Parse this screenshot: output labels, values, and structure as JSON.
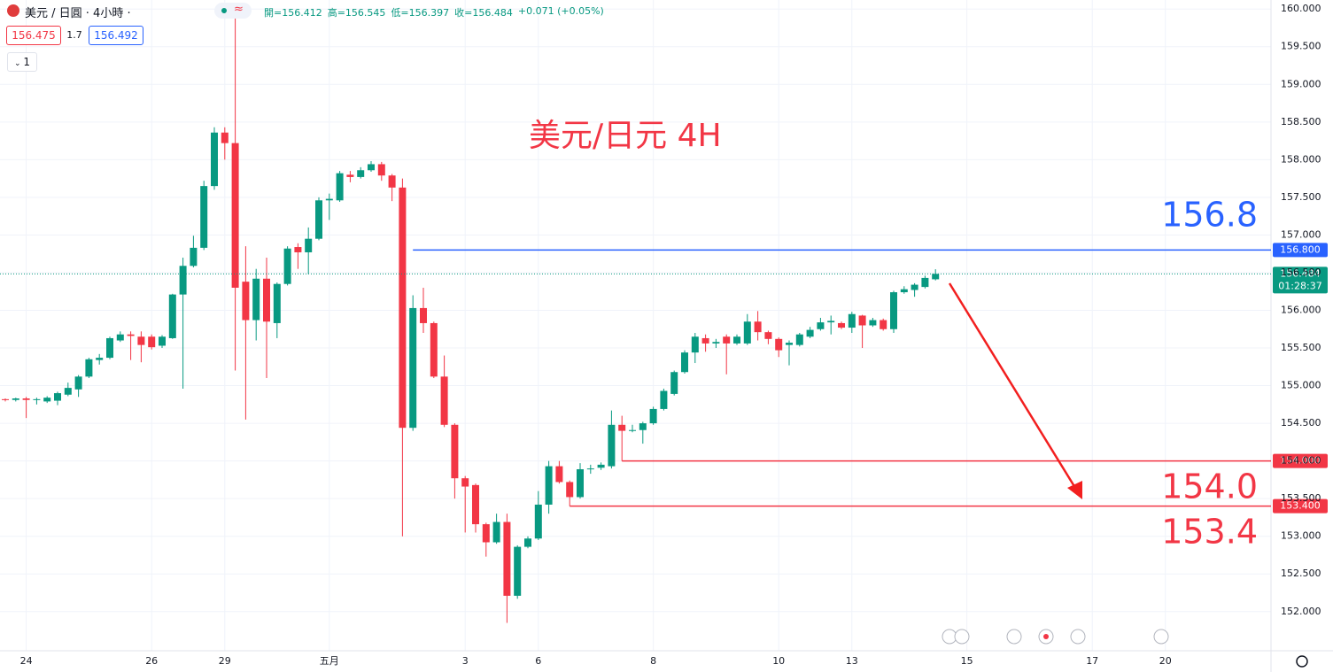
{
  "header": {
    "symbol": "美元 / 日圓 · 4小時 ·",
    "ohlc": [
      "開=156.412",
      "高=156.545",
      "低=156.397",
      "收=156.484",
      "+0.071 (+0.05%)"
    ],
    "bid": "156.475",
    "spread": "1.7",
    "ask": "156.492",
    "indicator_count": "1"
  },
  "chart_data": {
    "type": "candlestick",
    "title": "美元/日元 4H",
    "categories": [
      null,
      null,
      "24",
      null,
      null,
      null,
      null,
      null,
      null,
      null,
      null,
      null,
      null,
      null,
      "26",
      null,
      null,
      null,
      null,
      null,
      null,
      "29",
      null,
      null,
      null,
      null,
      null,
      null,
      null,
      null,
      null,
      "五月",
      null,
      null,
      null,
      null,
      null,
      null,
      null,
      null,
      null,
      null,
      null,
      null,
      "3",
      null,
      null,
      null,
      null,
      null,
      null,
      "6",
      null,
      null,
      null,
      null,
      null,
      null,
      null,
      null,
      null,
      null,
      "8",
      null,
      null,
      null,
      null,
      null,
      null,
      null,
      null,
      null,
      null,
      null,
      "10",
      null,
      null,
      null,
      null,
      null,
      null,
      "13",
      null,
      null,
      null,
      null,
      null,
      null,
      null,
      null,
      null,
      null,
      "15",
      null,
      null,
      null,
      null,
      null,
      null,
      null,
      null,
      null,
      null,
      null,
      "17",
      null,
      null,
      null,
      null,
      null,
      null,
      "20"
    ],
    "open": [
      154.82,
      154.81,
      154.83,
      154.81,
      154.79,
      154.8,
      154.88,
      154.95,
      155.12,
      155.34,
      155.37,
      155.6,
      155.68,
      155.65,
      155.65,
      155.53,
      155.63,
      156.21,
      156.59,
      156.83,
      157.65,
      158.36,
      158.22,
      156.38,
      155.87,
      156.42,
      155.83,
      156.35,
      156.84,
      156.77,
      156.95,
      157.46,
      157.46,
      157.8,
      157.77,
      157.86,
      157.94,
      157.79,
      157.63,
      154.44,
      156.03,
      155.83,
      155.12,
      154.48,
      153.77,
      153.68,
      153.16,
      152.92,
      153.19,
      152.21,
      152.86,
      152.97,
      153.42,
      153.93,
      153.72,
      153.52,
      153.89,
      153.91,
      153.93,
      154.48,
      154.4,
      154.41,
      154.5,
      154.69,
      154.89,
      155.18,
      155.44,
      155.63,
      155.56,
      155.65,
      155.56,
      155.56,
      155.85,
      155.71,
      155.62,
      155.54,
      155.54,
      155.65,
      155.75,
      155.84,
      155.83,
      155.77,
      155.93,
      155.8,
      155.87,
      155.75,
      156.24,
      156.27,
      156.31,
      156.412,
      null,
      null,
      null,
      null,
      null,
      null,
      null,
      null,
      null,
      null,
      null,
      null,
      null,
      null,
      null,
      null,
      null,
      null,
      null,
      null,
      null,
      null
    ],
    "high": [
      154.83,
      154.84,
      154.85,
      154.84,
      154.86,
      154.92,
      155.04,
      155.14,
      155.37,
      155.42,
      155.65,
      155.72,
      155.72,
      155.72,
      155.68,
      155.67,
      156.22,
      156.7,
      156.99,
      157.72,
      158.43,
      158.43,
      159.9,
      156.85,
      156.55,
      156.7,
      156.37,
      156.85,
      156.89,
      157.1,
      157.5,
      157.55,
      157.85,
      157.85,
      157.9,
      157.98,
      157.97,
      157.81,
      157.75,
      156.2,
      156.3,
      155.85,
      155.4,
      154.5,
      153.8,
      153.7,
      153.18,
      153.3,
      153.3,
      152.88,
      153.0,
      153.6,
      154.0,
      154.0,
      153.74,
      153.97,
      153.95,
      153.98,
      154.67,
      154.6,
      154.48,
      154.52,
      154.72,
      154.96,
      155.2,
      155.47,
      155.7,
      155.68,
      155.62,
      155.68,
      155.68,
      155.95,
      155.99,
      155.73,
      155.64,
      155.6,
      155.7,
      155.78,
      155.9,
      155.93,
      155.85,
      155.98,
      155.94,
      155.9,
      155.89,
      156.26,
      156.32,
      156.36,
      156.46,
      156.545,
      null,
      null,
      null,
      null,
      null,
      null,
      null,
      null,
      null,
      null,
      null,
      null,
      null,
      null,
      null,
      null,
      null,
      null,
      null,
      null,
      null,
      null
    ],
    "low": [
      154.79,
      154.79,
      154.57,
      154.75,
      154.77,
      154.74,
      154.86,
      154.85,
      155.1,
      155.28,
      155.35,
      155.58,
      155.34,
      155.31,
      155.48,
      155.5,
      155.62,
      154.96,
      156.57,
      156.8,
      157.6,
      158.0,
      155.2,
      154.55,
      155.6,
      155.1,
      155.63,
      156.33,
      156.55,
      156.48,
      156.93,
      157.2,
      157.44,
      157.7,
      157.75,
      157.84,
      157.72,
      157.45,
      153.0,
      154.4,
      155.7,
      155.1,
      154.45,
      153.5,
      153.05,
      153.05,
      152.73,
      152.9,
      151.85,
      152.17,
      152.84,
      152.95,
      153.3,
      153.7,
      153.4,
      153.5,
      153.83,
      153.88,
      153.9,
      154.0,
      154.38,
      154.23,
      154.48,
      154.67,
      154.87,
      155.16,
      155.3,
      155.45,
      155.5,
      155.15,
      155.54,
      155.54,
      155.6,
      155.55,
      155.38,
      155.27,
      155.52,
      155.63,
      155.73,
      155.68,
      155.75,
      155.7,
      155.5,
      155.78,
      155.73,
      155.7,
      156.22,
      156.18,
      156.29,
      156.397,
      null,
      null,
      null,
      null,
      null,
      null,
      null,
      null,
      null,
      null,
      null,
      null,
      null,
      null,
      null,
      null,
      null,
      null,
      null,
      null,
      null,
      null
    ],
    "close": [
      154.81,
      154.83,
      154.81,
      154.82,
      154.84,
      154.9,
      154.97,
      155.12,
      155.35,
      155.37,
      155.63,
      155.68,
      155.66,
      155.54,
      155.51,
      155.65,
      156.21,
      156.59,
      156.83,
      157.65,
      158.36,
      158.22,
      156.3,
      155.87,
      156.42,
      155.85,
      156.35,
      156.82,
      156.77,
      156.95,
      157.46,
      157.48,
      157.82,
      157.77,
      157.86,
      157.94,
      157.79,
      157.63,
      154.44,
      156.03,
      155.83,
      155.12,
      154.48,
      153.77,
      153.66,
      153.16,
      152.92,
      153.19,
      152.21,
      152.86,
      152.97,
      153.42,
      153.93,
      153.72,
      153.52,
      153.89,
      153.9,
      153.95,
      154.48,
      154.4,
      154.41,
      154.5,
      154.69,
      154.93,
      155.18,
      155.44,
      155.65,
      155.56,
      155.58,
      155.56,
      155.65,
      155.85,
      155.71,
      155.62,
      155.47,
      155.57,
      155.68,
      155.74,
      155.84,
      155.86,
      155.77,
      155.95,
      155.8,
      155.87,
      155.75,
      156.24,
      156.28,
      156.34,
      156.43,
      156.484,
      null,
      null,
      null,
      null,
      null,
      null,
      null,
      null,
      null,
      null,
      null,
      null,
      null,
      null,
      null,
      null,
      null,
      null,
      null,
      null,
      null,
      null
    ],
    "up_color": "#089981",
    "down_color": "#f23645",
    "ylim": [
      151.48,
      160.12
    ],
    "yticks": [
      {
        "value": 152,
        "label": "152.000"
      },
      {
        "value": 152.5,
        "label": "152.500"
      },
      {
        "value": 153,
        "label": "153.000"
      },
      {
        "value": 153.5,
        "label": "153.500"
      },
      {
        "value": 154,
        "label": "154.000"
      },
      {
        "value": 154.5,
        "label": "154.500"
      },
      {
        "value": 155,
        "label": "155.000"
      },
      {
        "value": 155.5,
        "label": "155.500"
      },
      {
        "value": 156,
        "label": "156.000"
      },
      {
        "value": 156.5,
        "label": "156.500"
      },
      {
        "value": 157,
        "label": "157.000"
      },
      {
        "value": 157.5,
        "label": "157.500"
      },
      {
        "value": 158,
        "label": "158.000"
      },
      {
        "value": 158.5,
        "label": "158.500"
      },
      {
        "value": 159,
        "label": "159.000"
      },
      {
        "value": 159.5,
        "label": "159.500"
      },
      {
        "value": 160,
        "label": "160.000"
      }
    ],
    "grid": true,
    "levels": [
      {
        "value": 156.8,
        "label": "156.8",
        "axis_label": "156.800",
        "color": "#2962ff"
      },
      {
        "value": 154.0,
        "label": "154.0",
        "axis_label": "154.000",
        "color": "#f23645"
      },
      {
        "value": 153.4,
        "label": "153.4",
        "axis_label": "153.400",
        "color": "#f23645"
      }
    ],
    "last_price": {
      "value": 156.484,
      "label": "156.484",
      "countdown": "01:28:37",
      "color": "#089981"
    }
  }
}
